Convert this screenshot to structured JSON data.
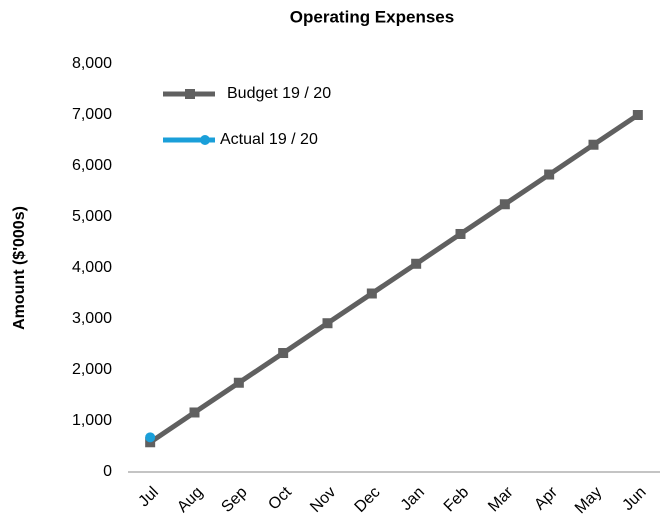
{
  "chart_data": {
    "type": "line",
    "title": "Operating Expenses",
    "y_label": "Amount ($'000s)",
    "categories": [
      "Jul",
      "Aug",
      "Sep",
      "Oct",
      "Nov",
      "Dec",
      "Jan",
      "Feb",
      "Mar",
      "Apr",
      "May",
      "Jun"
    ],
    "series": [
      {
        "name": "Budget 19 / 20",
        "color": "#606060",
        "marker": "square",
        "values": [
          583,
          1167,
          1750,
          2333,
          2917,
          3500,
          4083,
          4667,
          5250,
          5833,
          6417,
          7000
        ]
      },
      {
        "name": "Actual 19 / 20",
        "color": "#1a9fd9",
        "marker": "circle",
        "values": [
          680,
          null,
          null,
          null,
          null,
          null,
          null,
          null,
          null,
          null,
          null,
          null
        ]
      }
    ],
    "ylim": [
      0,
      8000
    ],
    "yticks": [
      0,
      {
        "value": 1000,
        "label": "1,000"
      },
      {
        "value": 2000,
        "label": "2,000"
      },
      {
        "value": 3000,
        "label": "3,000"
      },
      {
        "value": 4000,
        "label": "4,000"
      },
      {
        "value": 5000,
        "label": "5,000"
      },
      {
        "value": 6000,
        "label": "6,000"
      },
      {
        "value": 7000,
        "label": "7,000"
      },
      {
        "value": 8000,
        "label": "8,000"
      }
    ],
    "legend": "upper left",
    "grid": false
  }
}
